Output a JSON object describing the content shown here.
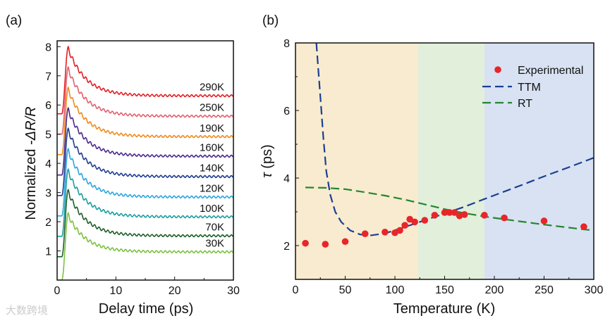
{
  "chart_data": [
    {
      "panel_label": "(a)",
      "type": "line",
      "xlabel": "Delay time (ps)",
      "ylabel_prefix": "Normalized -",
      "ylabel_math": "ΔR/R",
      "xlim": [
        0,
        30
      ],
      "ylim": [
        0,
        8.2
      ],
      "xticks": [
        0,
        10,
        20,
        30
      ],
      "yticks": [
        1,
        2,
        3,
        4,
        5,
        6,
        7,
        8
      ],
      "grid": false,
      "onset_ps": 0.8,
      "peak_time_ps": 1.9,
      "decay_tau_ps": 3.0,
      "oscillation_period_ps": 0.75,
      "oscillation_amplitude": 0.05,
      "series": [
        {
          "name": "290K",
          "color": "#e31e24",
          "baseline": 5.7,
          "peak": 8.0,
          "final": 6.35
        },
        {
          "name": "250K",
          "color": "#e2606e",
          "baseline": 5.0,
          "peak": 7.3,
          "final": 5.65
        },
        {
          "name": "190K",
          "color": "#f08a1c",
          "baseline": 4.3,
          "peak": 6.6,
          "final": 4.95
        },
        {
          "name": "160K",
          "color": "#4b2a8c",
          "baseline": 3.6,
          "peak": 5.9,
          "final": 4.28
        },
        {
          "name": "140K",
          "color": "#1f3c8f",
          "baseline": 2.9,
          "peak": 5.2,
          "final": 3.58
        },
        {
          "name": "120K",
          "color": "#2aa7df",
          "baseline": 2.2,
          "peak": 4.5,
          "final": 2.88
        },
        {
          "name": "100K",
          "color": "#1a9ea0",
          "baseline": 1.5,
          "peak": 3.8,
          "final": 2.2
        },
        {
          "name": "70K",
          "color": "#1e5e2a",
          "baseline": 0.8,
          "peak": 3.1,
          "final": 1.55
        },
        {
          "name": "30K",
          "color": "#7cc242",
          "baseline": 0.0,
          "peak": 2.3,
          "final": 1.0
        }
      ]
    },
    {
      "panel_label": "(b)",
      "type": "scatter",
      "xlabel": "Temperature (K)",
      "ylabel_symbol": "τ",
      "ylabel_unit": " (ps)",
      "xlim": [
        0,
        300
      ],
      "ylim": [
        1,
        8
      ],
      "xticks": [
        0,
        50,
        100,
        150,
        200,
        250,
        300
      ],
      "yticks": [
        2,
        4,
        6,
        8
      ],
      "grid": false,
      "legend_position": "top-right",
      "regions": [
        {
          "from": 0,
          "to": 123,
          "color": "#f8ebcf"
        },
        {
          "from": 123,
          "to": 190,
          "color": "#e2efda"
        },
        {
          "from": 190,
          "to": 300,
          "color": "#d8e2f2"
        }
      ],
      "series": [
        {
          "name": "Experimental",
          "style": "points",
          "color": "#e8262a",
          "x": [
            10,
            30,
            50,
            70,
            90,
            100,
            105,
            110,
            115,
            120,
            130,
            140,
            150,
            155,
            160,
            165,
            170,
            190,
            210,
            250,
            290
          ],
          "y": [
            2.07,
            2.04,
            2.12,
            2.35,
            2.4,
            2.38,
            2.45,
            2.6,
            2.78,
            2.7,
            2.75,
            2.9,
            2.98,
            2.98,
            2.98,
            2.88,
            2.92,
            2.9,
            2.82,
            2.73,
            2.56
          ]
        },
        {
          "name": "TTM",
          "style": "dashed",
          "color": "#1c3f94",
          "x": [
            21,
            23,
            25,
            28,
            31,
            35,
            40,
            46,
            55,
            65,
            75,
            90,
            110,
            130,
            150,
            170,
            190,
            210,
            230,
            250,
            275,
            300
          ],
          "y": [
            8,
            7.2,
            6.4,
            5.2,
            4.2,
            3.5,
            3.0,
            2.7,
            2.45,
            2.33,
            2.3,
            2.36,
            2.55,
            2.75,
            2.95,
            3.15,
            3.38,
            3.6,
            3.82,
            4.05,
            4.32,
            4.6
          ]
        },
        {
          "name": "RT",
          "style": "dashed",
          "color": "#24862f",
          "x": [
            10,
            30,
            50,
            70,
            90,
            110,
            130,
            150,
            170,
            190,
            210,
            230,
            250,
            270,
            290,
            300
          ],
          "y": [
            3.72,
            3.71,
            3.67,
            3.58,
            3.48,
            3.36,
            3.22,
            3.08,
            2.96,
            2.86,
            2.78,
            2.7,
            2.62,
            2.55,
            2.48,
            2.45
          ]
        }
      ]
    }
  ],
  "watermark": "大数跨境"
}
